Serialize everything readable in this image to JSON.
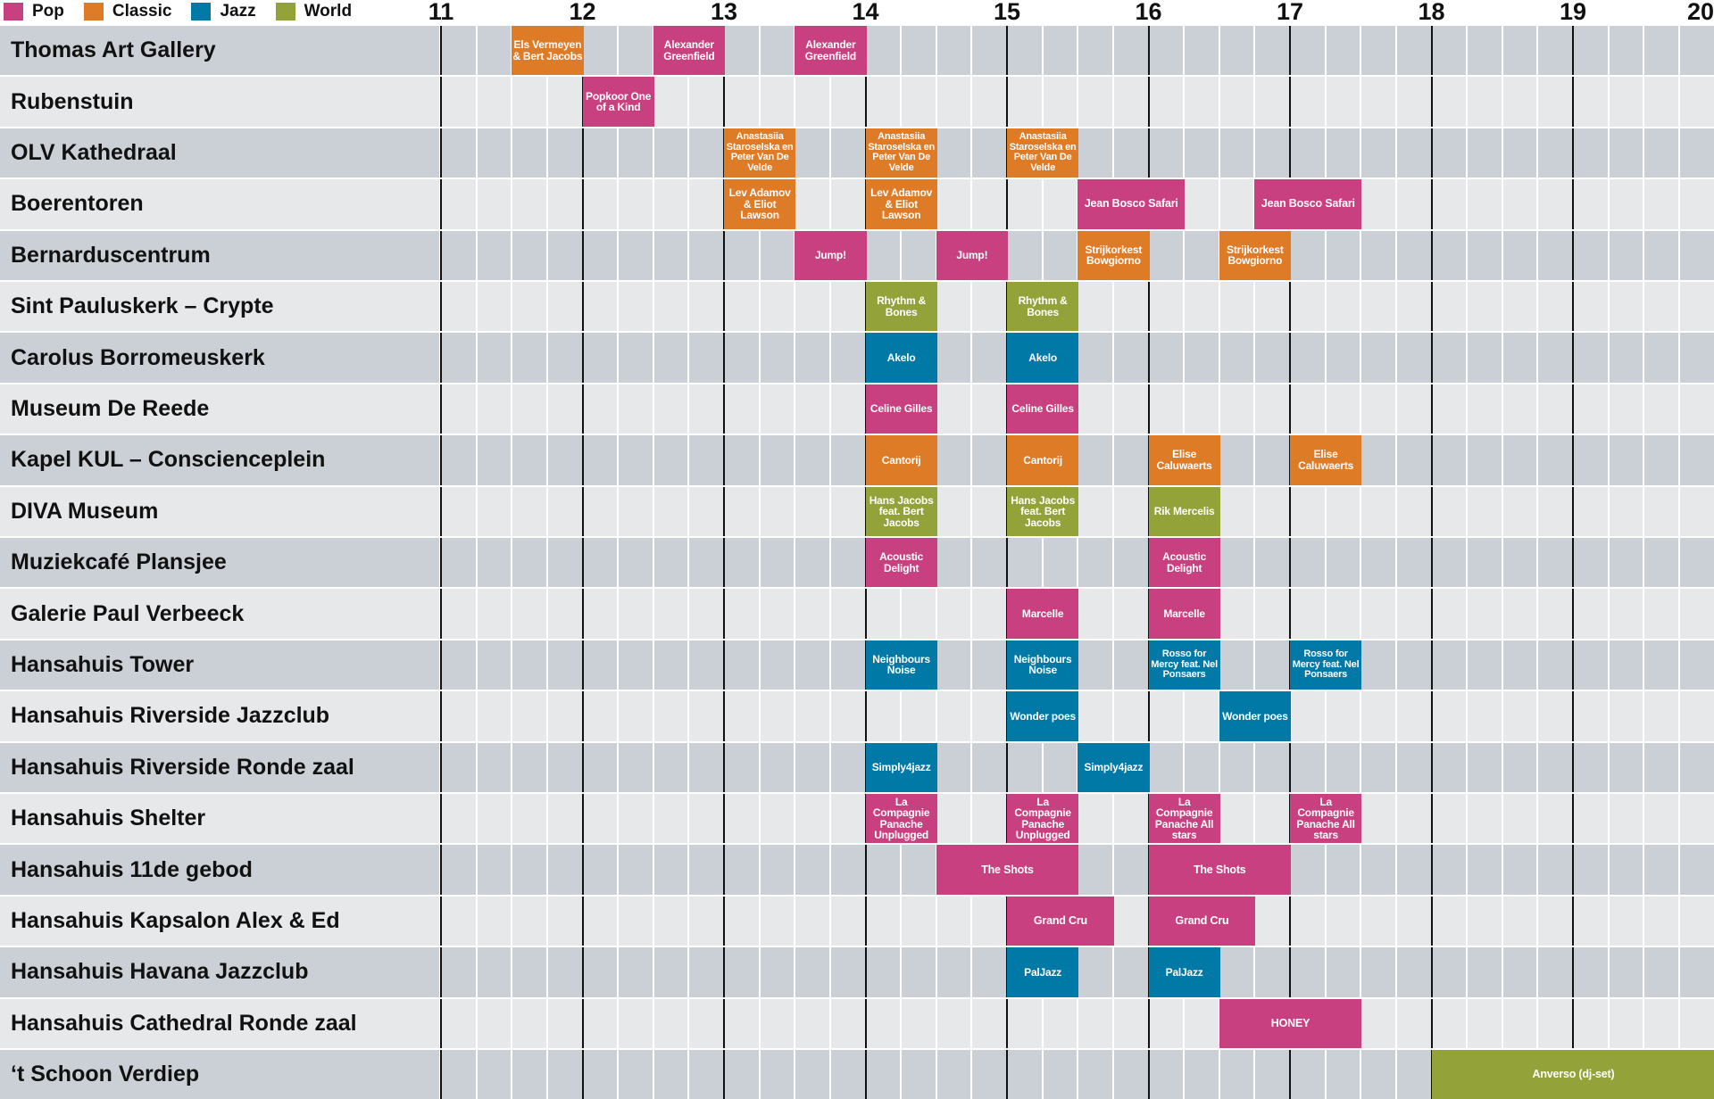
{
  "legend": [
    {
      "label": "Pop",
      "color": "#c94080"
    },
    {
      "label": "Classic",
      "color": "#de7b27"
    },
    {
      "label": "Jazz",
      "color": "#0079a6"
    },
    {
      "label": "World",
      "color": "#93a239"
    }
  ],
  "hours": [
    "11",
    "12",
    "13",
    "14",
    "15",
    "16",
    "17",
    "18",
    "19",
    "20"
  ],
  "colors": {
    "row_dark": "#cbd0d6",
    "row_light": "#e7e8ea",
    "Pop": "#c94080",
    "Classic": "#de7b27",
    "Jazz": "#0079a6",
    "World": "#93a239"
  },
  "chart_data": {
    "type": "table",
    "title": "",
    "x_axis": {
      "label": "hour",
      "start": 11,
      "end": 20,
      "ticks": [
        11,
        12,
        13,
        14,
        15,
        16,
        17,
        18,
        19,
        20
      ],
      "minor_step_minutes": 15
    },
    "legend_position": "top-left",
    "grid": true,
    "venues": [
      {
        "name": "Thomas Art Gallery",
        "events": [
          {
            "title": "Els Vermeyen & Bert Jacobs",
            "genre": "Classic",
            "start": 11.5,
            "end": 12.0
          },
          {
            "title": "Alexander Greenfield",
            "genre": "Pop",
            "start": 12.5,
            "end": 13.0
          },
          {
            "title": "Alexander Greenfield",
            "genre": "Pop",
            "start": 13.5,
            "end": 14.0
          }
        ]
      },
      {
        "name": "Rubenstuin",
        "events": [
          {
            "title": "Popkoor One of a Kind",
            "genre": "Pop",
            "start": 12.0,
            "end": 12.5
          }
        ]
      },
      {
        "name": "OLV Kathedraal",
        "events": [
          {
            "title": "Anastasiia Staroselska en Peter Van De Velde",
            "genre": "Classic",
            "start": 13.0,
            "end": 13.5
          },
          {
            "title": "Anastasiia Staroselska en Peter Van De Velde",
            "genre": "Classic",
            "start": 14.0,
            "end": 14.5
          },
          {
            "title": "Anastasiia Staroselska en Peter Van De Velde",
            "genre": "Classic",
            "start": 15.0,
            "end": 15.5
          }
        ]
      },
      {
        "name": "Boerentoren",
        "events": [
          {
            "title": "Lev Adamov & Eliot Lawson",
            "genre": "Classic",
            "start": 13.0,
            "end": 13.5
          },
          {
            "title": "Lev Adamov & Eliot Lawson",
            "genre": "Classic",
            "start": 14.0,
            "end": 14.5
          },
          {
            "title": "Jean Bosco Safari",
            "genre": "Pop",
            "start": 15.5,
            "end": 16.25
          },
          {
            "title": "Jean Bosco Safari",
            "genre": "Pop",
            "start": 16.75,
            "end": 17.5
          }
        ]
      },
      {
        "name": "Bernarduscentrum",
        "events": [
          {
            "title": "Jump!",
            "genre": "Pop",
            "start": 13.5,
            "end": 14.0
          },
          {
            "title": "Jump!",
            "genre": "Pop",
            "start": 14.5,
            "end": 15.0
          },
          {
            "title": "Strijkorkest Bowgiorno",
            "genre": "Classic",
            "start": 15.5,
            "end": 16.0
          },
          {
            "title": "Strijkorkest Bowgiorno",
            "genre": "Classic",
            "start": 16.5,
            "end": 17.0
          }
        ]
      },
      {
        "name": "Sint Pauluskerk – Crypte",
        "events": [
          {
            "title": "Rhythm & Bones",
            "genre": "World",
            "start": 14.0,
            "end": 14.5
          },
          {
            "title": "Rhythm & Bones",
            "genre": "World",
            "start": 15.0,
            "end": 15.5
          }
        ]
      },
      {
        "name": "Carolus Borromeuskerk",
        "events": [
          {
            "title": "Akelo",
            "genre": "Jazz",
            "start": 14.0,
            "end": 14.5
          },
          {
            "title": "Akelo",
            "genre": "Jazz",
            "start": 15.0,
            "end": 15.5
          }
        ]
      },
      {
        "name": "Museum De Reede",
        "events": [
          {
            "title": "Celine Gilles",
            "genre": "Pop",
            "start": 14.0,
            "end": 14.5
          },
          {
            "title": "Celine Gilles",
            "genre": "Pop",
            "start": 15.0,
            "end": 15.5
          }
        ]
      },
      {
        "name": "Kapel KUL – Conscienceplein",
        "events": [
          {
            "title": "Cantorij",
            "genre": "Classic",
            "start": 14.0,
            "end": 14.5
          },
          {
            "title": "Cantorij",
            "genre": "Classic",
            "start": 15.0,
            "end": 15.5
          },
          {
            "title": "Elise Caluwaerts",
            "genre": "Classic",
            "start": 16.0,
            "end": 16.5
          },
          {
            "title": "Elise Caluwaerts",
            "genre": "Classic",
            "start": 17.0,
            "end": 17.5
          }
        ]
      },
      {
        "name": "DIVA Museum",
        "events": [
          {
            "title": "Hans Jacobs feat. Bert Jacobs",
            "genre": "World",
            "start": 14.0,
            "end": 14.5
          },
          {
            "title": "Hans Jacobs feat. Bert Jacobs",
            "genre": "World",
            "start": 15.0,
            "end": 15.5
          },
          {
            "title": "Rik Mercelis",
            "genre": "World",
            "start": 16.0,
            "end": 16.5
          }
        ]
      },
      {
        "name": "Muziekcafé Plansjee",
        "events": [
          {
            "title": "Acoustic Delight",
            "genre": "Pop",
            "start": 14.0,
            "end": 14.5
          },
          {
            "title": "Acoustic Delight",
            "genre": "Pop",
            "start": 16.0,
            "end": 16.5
          }
        ]
      },
      {
        "name": "Galerie Paul Verbeeck",
        "events": [
          {
            "title": "Marcelle",
            "genre": "Pop",
            "start": 15.0,
            "end": 15.5
          },
          {
            "title": "Marcelle",
            "genre": "Pop",
            "start": 16.0,
            "end": 16.5
          }
        ]
      },
      {
        "name": "Hansahuis Tower",
        "events": [
          {
            "title": "Neighbours Noise",
            "genre": "Jazz",
            "start": 14.0,
            "end": 14.5
          },
          {
            "title": "Neighbours Noise",
            "genre": "Jazz",
            "start": 15.0,
            "end": 15.5
          },
          {
            "title": "Rosso for Mercy feat. Nel Ponsaers",
            "genre": "Jazz",
            "start": 16.0,
            "end": 16.5
          },
          {
            "title": "Rosso for Mercy feat. Nel Ponsaers",
            "genre": "Jazz",
            "start": 17.0,
            "end": 17.5
          }
        ]
      },
      {
        "name": "Hansahuis Riverside Jazzclub",
        "events": [
          {
            "title": "Wonder poes",
            "genre": "Jazz",
            "start": 15.0,
            "end": 15.5
          },
          {
            "title": "Wonder poes",
            "genre": "Jazz",
            "start": 16.5,
            "end": 17.0
          }
        ]
      },
      {
        "name": "Hansahuis Riverside Ronde zaal",
        "events": [
          {
            "title": "Simply4jazz",
            "genre": "Jazz",
            "start": 14.0,
            "end": 14.5
          },
          {
            "title": "Simply4jazz",
            "genre": "Jazz",
            "start": 15.5,
            "end": 16.0
          }
        ]
      },
      {
        "name": "Hansahuis Shelter",
        "events": [
          {
            "title": "La Compagnie Panache Unplugged",
            "genre": "Pop",
            "start": 14.0,
            "end": 14.5
          },
          {
            "title": "La Compagnie Panache Unplugged",
            "genre": "Pop",
            "start": 15.0,
            "end": 15.5
          },
          {
            "title": "La Compagnie Panache All stars",
            "genre": "Pop",
            "start": 16.0,
            "end": 16.5
          },
          {
            "title": "La Compagnie Panache All stars",
            "genre": "Pop",
            "start": 17.0,
            "end": 17.5
          }
        ]
      },
      {
        "name": "Hansahuis 11de gebod",
        "events": [
          {
            "title": "The Shots",
            "genre": "Pop",
            "start": 14.5,
            "end": 15.5
          },
          {
            "title": "The Shots",
            "genre": "Pop",
            "start": 16.0,
            "end": 17.0
          }
        ]
      },
      {
        "name": "Hansahuis Kapsalon Alex & Ed",
        "events": [
          {
            "title": "Grand Cru",
            "genre": "Pop",
            "start": 15.0,
            "end": 15.75
          },
          {
            "title": "Grand Cru",
            "genre": "Pop",
            "start": 16.0,
            "end": 16.75
          }
        ]
      },
      {
        "name": "Hansahuis Havana Jazzclub",
        "events": [
          {
            "title": "PalJazz",
            "genre": "Jazz",
            "start": 15.0,
            "end": 15.5
          },
          {
            "title": "PalJazz",
            "genre": "Jazz",
            "start": 16.0,
            "end": 16.5
          }
        ]
      },
      {
        "name": "Hansahuis Cathedral Ronde zaal",
        "events": [
          {
            "title": "HONEY",
            "genre": "Pop",
            "start": 16.5,
            "end": 17.5
          }
        ]
      },
      {
        "name": "‘t Schoon Verdiep",
        "events": [
          {
            "title": "Anverso (dj-set)",
            "genre": "World",
            "start": 18.0,
            "end": 20.0
          }
        ]
      }
    ]
  }
}
